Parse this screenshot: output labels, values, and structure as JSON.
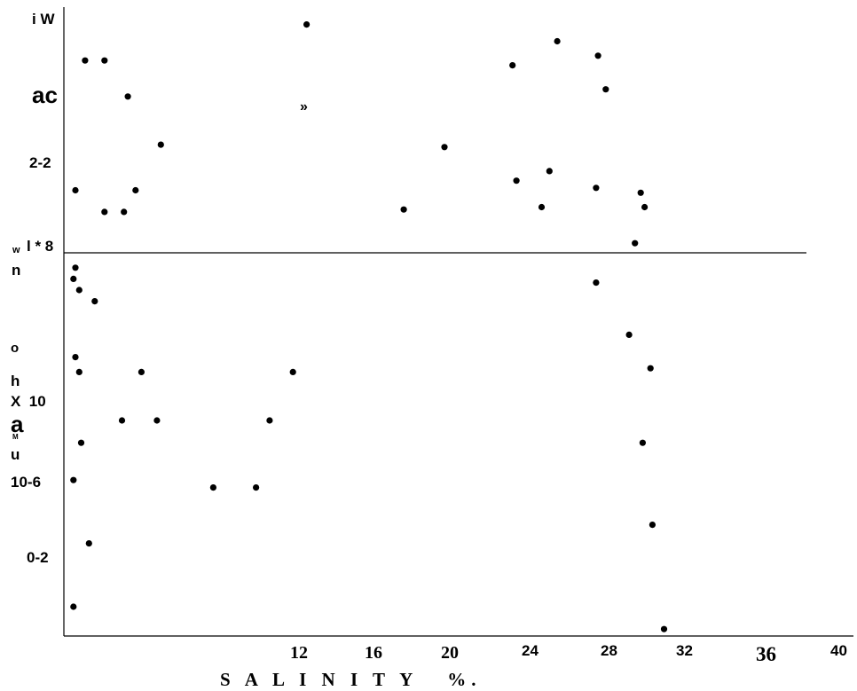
{
  "chart_data": {
    "type": "scatter",
    "title": "",
    "xlabel": "S A L I N I T Y   %.",
    "ylabel": "",
    "x_tick_labels": [
      "12",
      "16",
      "20",
      "24",
      "28",
      "32",
      "36",
      "40"
    ],
    "y_side_labels": [
      "i W",
      "ac",
      "»",
      "2-2",
      "w",
      "l * 8",
      "n",
      "o",
      "h",
      "X  10",
      "a",
      "M",
      "u",
      "10-6",
      "0-2"
    ],
    "grid": false,
    "legend": "none",
    "xlim": [
      4.0,
      40.0
    ],
    "top_panel": {
      "points": [
        [
          5.0,
          20
        ],
        [
          6.0,
          20
        ],
        [
          7.2,
          35
        ],
        [
          8.9,
          55
        ],
        [
          4.5,
          74
        ],
        [
          6.0,
          83
        ],
        [
          7.0,
          83
        ],
        [
          7.6,
          74
        ],
        [
          16.4,
          5
        ],
        [
          21.4,
          82
        ],
        [
          23.5,
          56
        ],
        [
          27.0,
          22
        ],
        [
          27.2,
          70
        ],
        [
          28.5,
          81
        ],
        [
          28.9,
          66
        ],
        [
          29.3,
          12
        ],
        [
          31.3,
          73
        ],
        [
          31.4,
          18
        ],
        [
          31.8,
          32
        ],
        [
          33.3,
          96
        ],
        [
          33.6,
          75
        ],
        [
          33.8,
          81
        ]
      ]
    },
    "bottom_panel": {
      "points": [
        [
          4.5,
          4
        ],
        [
          4.4,
          7
        ],
        [
          4.7,
          10
        ],
        [
          5.5,
          13
        ],
        [
          4.5,
          28
        ],
        [
          4.7,
          32
        ],
        [
          4.8,
          51
        ],
        [
          4.4,
          61
        ],
        [
          5.2,
          78
        ],
        [
          4.4,
          95
        ],
        [
          6.9,
          45
        ],
        [
          7.9,
          32
        ],
        [
          8.7,
          45
        ],
        [
          11.6,
          63
        ],
        [
          13.8,
          63
        ],
        [
          14.5,
          45
        ],
        [
          15.7,
          32
        ],
        [
          31.3,
          8
        ],
        [
          33.0,
          22
        ],
        [
          33.7,
          51
        ],
        [
          34.1,
          31
        ],
        [
          34.2,
          73
        ],
        [
          34.8,
          101
        ]
      ]
    }
  }
}
